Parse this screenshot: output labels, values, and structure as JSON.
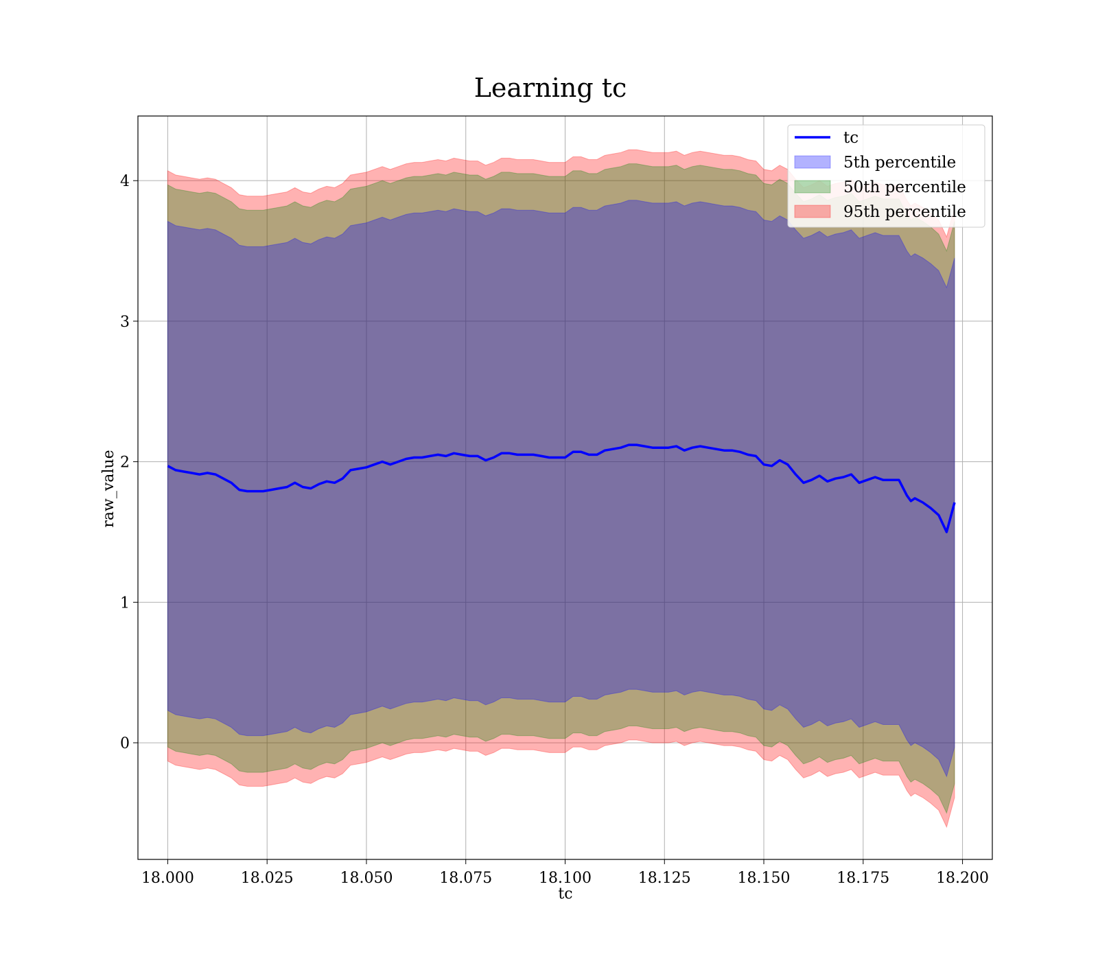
{
  "chart_data": {
    "type": "area",
    "title": "Learning tc",
    "xlabel": "tc",
    "ylabel": "raw_value",
    "xlim": [
      17.9925,
      18.2075
    ],
    "ylim": [
      -0.83,
      4.46
    ],
    "xticks": [
      18.0,
      18.025,
      18.05,
      18.075,
      18.1,
      18.125,
      18.15,
      18.175,
      18.2
    ],
    "xtick_labels": [
      "18.000",
      "18.025",
      "18.050",
      "18.075",
      "18.100",
      "18.125",
      "18.150",
      "18.175",
      "18.200"
    ],
    "yticks": [
      0,
      1,
      2,
      3,
      4
    ],
    "ytick_labels": [
      "0",
      "1",
      "2",
      "3",
      "4"
    ],
    "grid": true,
    "legend_position": "top-right",
    "colors": {
      "line": "#0000ff",
      "band_5": "#0000ff",
      "band_50": "#008000",
      "band_95": "#ff0000"
    },
    "series": [
      {
        "name": "tc",
        "kind": "line",
        "x": [
          18.0,
          18.002,
          18.004,
          18.006,
          18.008,
          18.01,
          18.012,
          18.014,
          18.016,
          18.018,
          18.02,
          18.022,
          18.024,
          18.026,
          18.028,
          18.03,
          18.032,
          18.034,
          18.036,
          18.038,
          18.04,
          18.042,
          18.044,
          18.046,
          18.048,
          18.05,
          18.052,
          18.054,
          18.056,
          18.058,
          18.06,
          18.062,
          18.064,
          18.066,
          18.068,
          18.07,
          18.072,
          18.074,
          18.076,
          18.078,
          18.08,
          18.082,
          18.084,
          18.086,
          18.088,
          18.09,
          18.092,
          18.094,
          18.096,
          18.098,
          18.1,
          18.102,
          18.104,
          18.106,
          18.108,
          18.11,
          18.112,
          18.114,
          18.116,
          18.118,
          18.12,
          18.122,
          18.124,
          18.126,
          18.128,
          18.13,
          18.132,
          18.134,
          18.136,
          18.138,
          18.14,
          18.142,
          18.144,
          18.146,
          18.148,
          18.15,
          18.152,
          18.154,
          18.156,
          18.158,
          18.16,
          18.162,
          18.164,
          18.166,
          18.168,
          18.17,
          18.172,
          18.174,
          18.176,
          18.178,
          18.18,
          18.182,
          18.184,
          18.186,
          18.187,
          18.188,
          18.19,
          18.192,
          18.194,
          18.196,
          18.198
        ],
        "y": [
          1.97,
          1.94,
          1.93,
          1.92,
          1.91,
          1.92,
          1.91,
          1.88,
          1.85,
          1.8,
          1.79,
          1.79,
          1.79,
          1.8,
          1.81,
          1.82,
          1.85,
          1.82,
          1.81,
          1.84,
          1.86,
          1.85,
          1.88,
          1.94,
          1.95,
          1.96,
          1.98,
          2.0,
          1.98,
          2.0,
          2.02,
          2.03,
          2.03,
          2.04,
          2.05,
          2.04,
          2.06,
          2.05,
          2.04,
          2.04,
          2.01,
          2.03,
          2.06,
          2.06,
          2.05,
          2.05,
          2.05,
          2.04,
          2.03,
          2.03,
          2.03,
          2.07,
          2.07,
          2.05,
          2.05,
          2.08,
          2.09,
          2.1,
          2.12,
          2.12,
          2.11,
          2.1,
          2.1,
          2.1,
          2.11,
          2.08,
          2.1,
          2.11,
          2.1,
          2.09,
          2.08,
          2.08,
          2.07,
          2.05,
          2.04,
          1.98,
          1.97,
          2.01,
          1.98,
          1.91,
          1.85,
          1.87,
          1.9,
          1.86,
          1.88,
          1.89,
          1.91,
          1.85,
          1.87,
          1.89,
          1.87,
          1.87,
          1.87,
          1.76,
          1.72,
          1.74,
          1.71,
          1.67,
          1.62,
          1.5,
          1.71
        ]
      },
      {
        "name": "5th percentile",
        "kind": "band",
        "half_width": 1.74
      },
      {
        "name": "50th percentile",
        "kind": "band",
        "half_width": 2.0
      },
      {
        "name": "95th percentile",
        "kind": "band",
        "half_width": 2.1
      }
    ]
  }
}
